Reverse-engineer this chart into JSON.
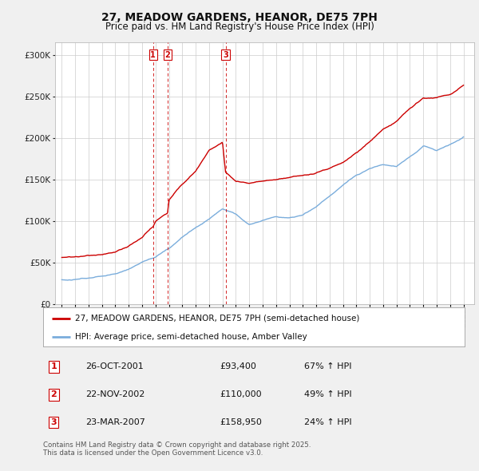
{
  "title": "27, MEADOW GARDENS, HEANOR, DE75 7PH",
  "subtitle": "Price paid vs. HM Land Registry's House Price Index (HPI)",
  "xlim": [
    1994.5,
    2025.8
  ],
  "ylim": [
    0,
    315000
  ],
  "yticks": [
    0,
    50000,
    100000,
    150000,
    200000,
    250000,
    300000
  ],
  "ytick_labels": [
    "£0",
    "£50K",
    "£100K",
    "£150K",
    "£200K",
    "£250K",
    "£300K"
  ],
  "sales": [
    {
      "num": 1,
      "date": "26-OCT-2001",
      "price": "93,400",
      "year": 2001.82,
      "pct": "67%",
      "dir": "↑"
    },
    {
      "num": 2,
      "date": "22-NOV-2002",
      "price": "110,000",
      "year": 2002.9,
      "pct": "49%",
      "dir": "↑"
    },
    {
      "num": 3,
      "date": "23-MAR-2007",
      "price": "158,950",
      "year": 2007.23,
      "pct": "24%",
      "dir": "↑"
    }
  ],
  "legend_entries": [
    {
      "label": "27, MEADOW GARDENS, HEANOR, DE75 7PH (semi-detached house)",
      "color": "#cc0000"
    },
    {
      "label": "HPI: Average price, semi-detached house, Amber Valley",
      "color": "#7aaddc"
    }
  ],
  "footer": "Contains HM Land Registry data © Crown copyright and database right 2025.\nThis data is licensed under the Open Government Licence v3.0.",
  "bg_color": "#f0f0f0",
  "plot_bg": "#ffffff",
  "grid_color": "#cccccc",
  "dashed_line_color": "#cc0000",
  "hpi_keypoints_x": [
    1995,
    1996,
    1997,
    1998,
    1999,
    2000,
    2001,
    2002,
    2003,
    2004,
    2005,
    2006,
    2007,
    2008,
    2009,
    2010,
    2011,
    2012,
    2013,
    2014,
    2015,
    2016,
    2017,
    2018,
    2019,
    2020,
    2021,
    2022,
    2023,
    2024,
    2025
  ],
  "hpi_keypoints_y": [
    28000,
    29000,
    31000,
    33000,
    36000,
    42000,
    50000,
    56000,
    67000,
    80000,
    92000,
    102000,
    115000,
    108000,
    95000,
    100000,
    105000,
    103000,
    107000,
    117000,
    130000,
    143000,
    155000,
    163000,
    168000,
    165000,
    178000,
    190000,
    185000,
    192000,
    200000
  ],
  "price_keypoints_x": [
    1995,
    1996,
    1997,
    1998,
    1999,
    2000,
    2001,
    2001.82,
    2002,
    2002.9,
    2003,
    2004,
    2005,
    2006,
    2007.0,
    2007.23,
    2007.5,
    2008,
    2009,
    2010,
    2011,
    2012,
    2013,
    2014,
    2015,
    2016,
    2017,
    2018,
    2019,
    2020,
    2021,
    2022,
    2023,
    2024,
    2024.5,
    2025
  ],
  "price_keypoints_y": [
    55000,
    56000,
    58000,
    60000,
    62000,
    70000,
    80000,
    93400,
    100000,
    110000,
    125000,
    145000,
    160000,
    185000,
    195000,
    158950,
    155000,
    148000,
    145000,
    148000,
    150000,
    152000,
    155000,
    158000,
    163000,
    170000,
    182000,
    195000,
    210000,
    220000,
    235000,
    248000,
    248000,
    252000,
    258000,
    265000
  ]
}
